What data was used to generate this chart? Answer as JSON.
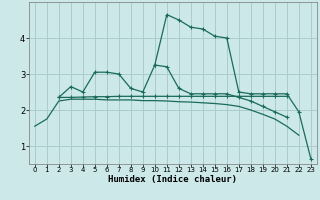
{
  "xlabel": "Humidex (Indice chaleur)",
  "bg_color": "#cce8e8",
  "grid_color": "#aacccc",
  "line_color": "#1a6b5a",
  "xlim": [
    -0.5,
    23.5
  ],
  "ylim": [
    0.5,
    5.0
  ],
  "yticks": [
    1,
    2,
    3,
    4
  ],
  "xticks": [
    0,
    1,
    2,
    3,
    4,
    5,
    6,
    7,
    8,
    9,
    10,
    11,
    12,
    13,
    14,
    15,
    16,
    17,
    18,
    19,
    20,
    21,
    22,
    23
  ],
  "series": [
    {
      "x": [
        0,
        1,
        2,
        3,
        4,
        5,
        6,
        7,
        8,
        9,
        10,
        11,
        12,
        13,
        14,
        15,
        16,
        17,
        18,
        19,
        20,
        21,
        22
      ],
      "y": [
        1.55,
        1.75,
        2.25,
        2.3,
        2.3,
        2.3,
        2.28,
        2.28,
        2.28,
        2.26,
        2.26,
        2.25,
        2.23,
        2.22,
        2.2,
        2.18,
        2.15,
        2.1,
        2.0,
        1.88,
        1.75,
        1.55,
        1.3
      ],
      "marker": false
    },
    {
      "x": [
        2,
        3,
        4,
        5,
        6,
        7,
        8,
        9,
        10,
        11,
        12,
        13,
        14,
        15,
        16,
        17,
        18,
        19,
        20,
        21
      ],
      "y": [
        2.35,
        2.35,
        2.36,
        2.37,
        2.37,
        2.38,
        2.38,
        2.38,
        2.38,
        2.38,
        2.38,
        2.38,
        2.38,
        2.38,
        2.38,
        2.38,
        2.38,
        2.38,
        2.38,
        2.38
      ],
      "marker": true
    },
    {
      "x": [
        2,
        3,
        4,
        5,
        6,
        7,
        8,
        9,
        10,
        11,
        12,
        13,
        14,
        15,
        16,
        17,
        18,
        19,
        20,
        21
      ],
      "y": [
        2.35,
        2.65,
        2.5,
        3.05,
        3.05,
        3.0,
        2.6,
        2.5,
        3.25,
        3.2,
        2.6,
        2.45,
        2.45,
        2.45,
        2.45,
        2.35,
        2.25,
        2.1,
        1.95,
        1.8
      ],
      "marker": true
    },
    {
      "x": [
        10,
        11,
        12,
        13,
        14,
        15,
        16,
        17,
        18,
        19,
        20,
        21,
        22,
        23
      ],
      "y": [
        3.25,
        4.65,
        4.5,
        4.3,
        4.25,
        4.05,
        4.0,
        2.5,
        2.45,
        2.45,
        2.45,
        2.45,
        1.95,
        0.65
      ],
      "marker": true
    }
  ]
}
